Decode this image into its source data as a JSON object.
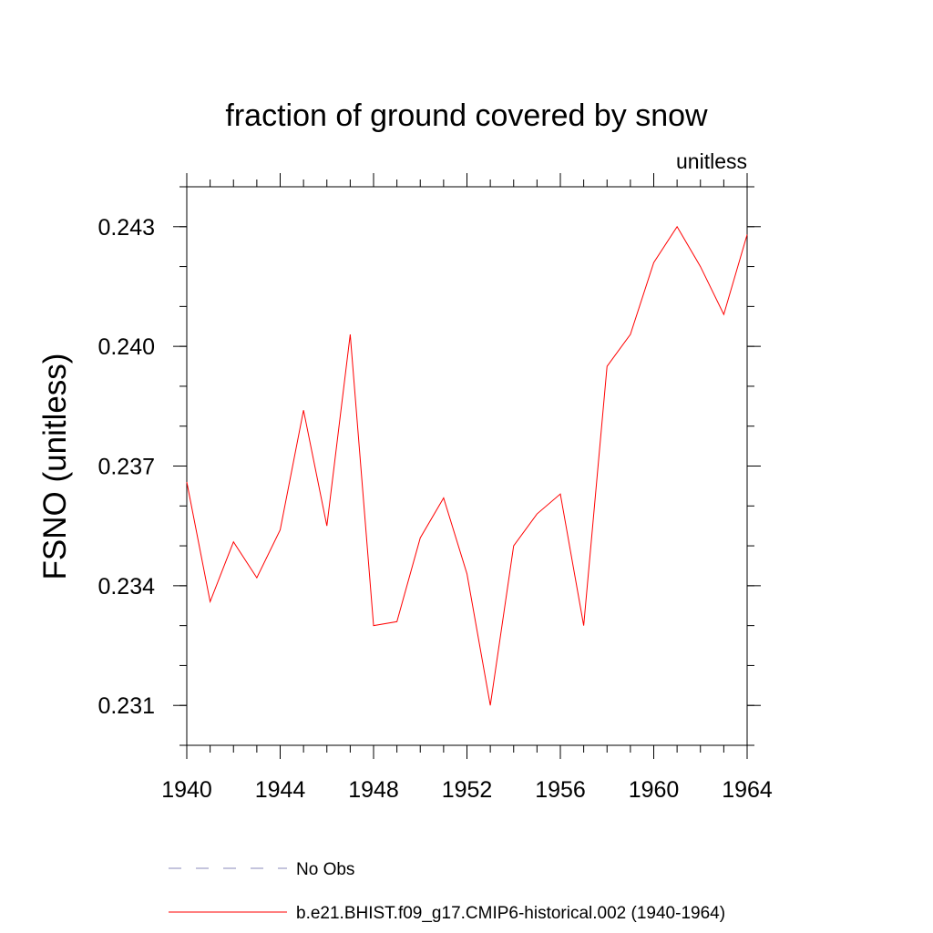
{
  "chart_data": {
    "type": "line",
    "title": "fraction of ground covered by snow",
    "units_label": "unitless",
    "xlabel": "",
    "ylabel": "FSNO  (unitless)",
    "xlim": [
      1940,
      1964
    ],
    "ylim": [
      0.23,
      0.244
    ],
    "x_ticks": [
      1940,
      1944,
      1948,
      1952,
      1956,
      1960,
      1964
    ],
    "x_tick_labels": [
      "1940",
      "1944",
      "1948",
      "1952",
      "1956",
      "1960",
      "1964"
    ],
    "y_ticks": [
      0.231,
      0.234,
      0.237,
      0.24,
      0.243
    ],
    "y_tick_labels": [
      "0.231",
      "0.234",
      "0.237",
      "0.240",
      "0.243"
    ],
    "grid": false,
    "legend_position": "bottom",
    "series": [
      {
        "name": "b.e21.BHIST.f09_g17.CMIP6-historical.002 (1940-1964)",
        "color": "#ff0000",
        "style": "solid",
        "x": [
          1940,
          1941,
          1942,
          1943,
          1944,
          1945,
          1946,
          1947,
          1948,
          1949,
          1950,
          1951,
          1952,
          1953,
          1954,
          1955,
          1956,
          1957,
          1958,
          1959,
          1960,
          1961,
          1962,
          1963,
          1964
        ],
        "values": [
          0.2366,
          0.2336,
          0.2351,
          0.2342,
          0.2354,
          0.2384,
          0.2355,
          0.2403,
          0.233,
          0.2331,
          0.2352,
          0.2362,
          0.2343,
          0.231,
          0.235,
          0.2358,
          0.2363,
          0.233,
          0.2395,
          0.2403,
          0.2421,
          0.243,
          0.242,
          0.2408,
          0.2428
        ]
      }
    ],
    "legend": [
      {
        "label": "No Obs",
        "color": "#8888bb",
        "style": "dashed"
      },
      {
        "label": "b.e21.BHIST.f09_g17.CMIP6-historical.002 (1940-1964)",
        "color": "#ff0000",
        "style": "solid"
      }
    ]
  }
}
